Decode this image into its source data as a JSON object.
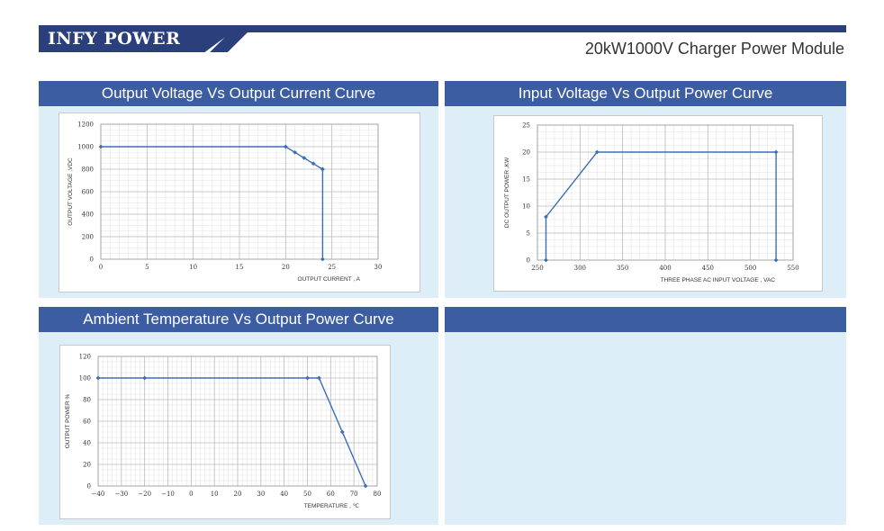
{
  "header": {
    "brand": "INFY POWER",
    "subtitle": "20kW1000V Charger Power Module"
  },
  "panels": [
    {
      "title": "Output Voltage Vs Output Current Curve"
    },
    {
      "title": "Input Voltage Vs Output Power Curve"
    },
    {
      "title": "Ambient Temperature Vs Output Power Curve"
    },
    {
      "title": ""
    }
  ],
  "colors": {
    "accent": "#2a3f7c",
    "panel_header": "#3d5da3",
    "panel_bg": "#ddeef8",
    "line": "#3c6eb4"
  },
  "chart_data": [
    {
      "type": "line",
      "xlabel": "OUTPUT CURRENT , A",
      "ylabel": "OUTPUT VOLTAGE ,VDC",
      "xlim": [
        0,
        30
      ],
      "ylim": [
        0,
        1200
      ],
      "xticks": [
        0,
        5,
        10,
        15,
        20,
        25,
        30
      ],
      "yticks": [
        0,
        200,
        400,
        600,
        800,
        1000,
        1200
      ],
      "grid": true,
      "series": [
        {
          "x": [
            0,
            20,
            21,
            22,
            23,
            24,
            24,
            24
          ],
          "y": [
            1000,
            1000,
            950,
            900,
            850,
            800,
            800,
            0
          ]
        }
      ]
    },
    {
      "type": "line",
      "xlabel": "THREE PHASE AC INPUT VOLTAGE , VAC",
      "ylabel": "DC OUTPUT POWER ,KW",
      "xlim": [
        250,
        550
      ],
      "ylim": [
        0,
        25
      ],
      "xticks": [
        250,
        300,
        350,
        400,
        450,
        500,
        550
      ],
      "yticks": [
        0,
        5,
        10,
        15,
        20,
        25
      ],
      "grid": true,
      "series": [
        {
          "x": [
            260,
            260,
            320,
            530,
            530
          ],
          "y": [
            0,
            8,
            20,
            20,
            0
          ]
        }
      ]
    },
    {
      "type": "line",
      "xlabel": "TEMPERATURE , ℃",
      "ylabel": "OUTPUT POWER %",
      "xlim": [
        -40,
        80
      ],
      "ylim": [
        0,
        120
      ],
      "xticks": [
        -40,
        -30,
        -20,
        -10,
        0,
        10,
        20,
        30,
        40,
        50,
        60,
        70,
        80
      ],
      "yticks": [
        0,
        20,
        40,
        60,
        80,
        100,
        120
      ],
      "grid": true,
      "series": [
        {
          "x": [
            -40,
            -20,
            50,
            55,
            65,
            75
          ],
          "y": [
            100,
            100,
            100,
            100,
            50,
            0
          ]
        }
      ]
    }
  ]
}
